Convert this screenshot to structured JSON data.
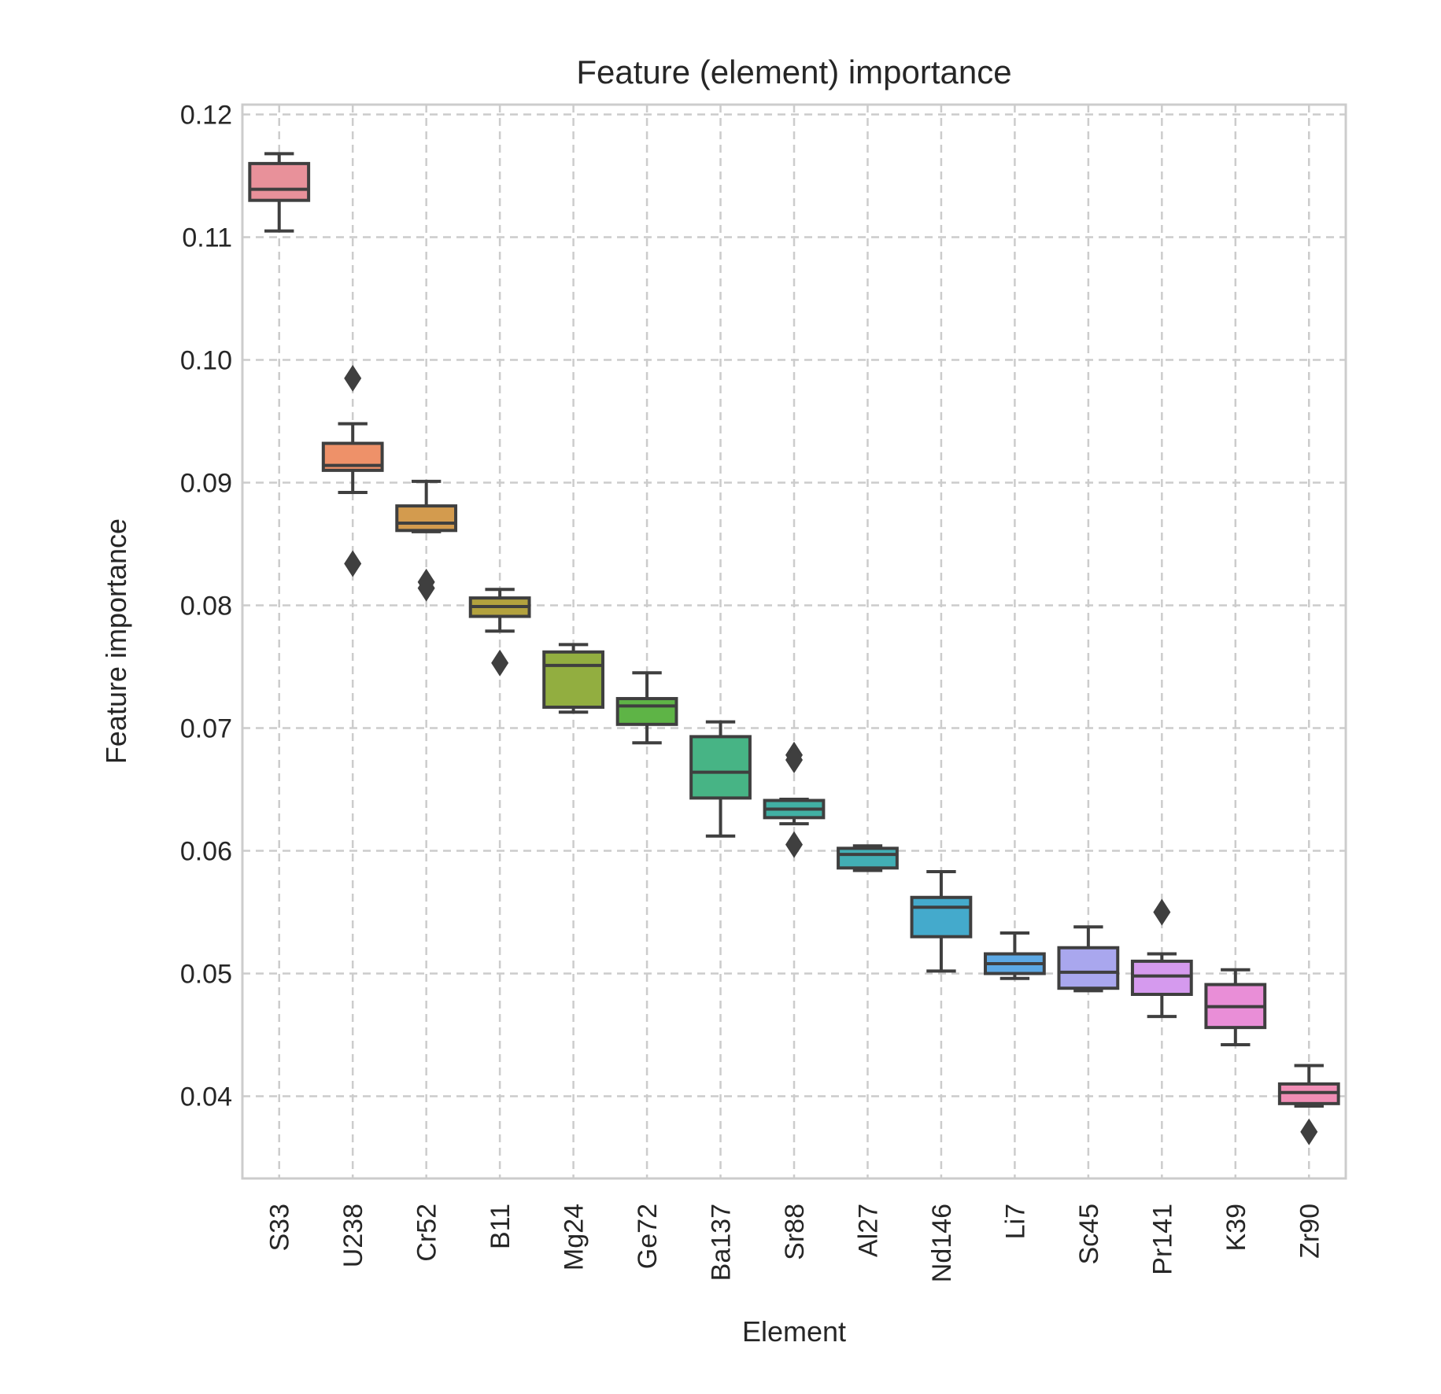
{
  "chart_data": {
    "type": "box",
    "title": "Feature (element) importance",
    "xlabel": "Element",
    "ylabel": "Feature importance",
    "ylim": [
      0.0333,
      0.1208
    ],
    "yticks": [
      "0.04",
      "0.05",
      "0.06",
      "0.07",
      "0.08",
      "0.09",
      "0.10",
      "0.11",
      "0.12"
    ],
    "grid": true,
    "grid_style": "dashed",
    "categories": [
      "S33",
      "U238",
      "Cr52",
      "B11",
      "Mg24",
      "Ge72",
      "Ba137",
      "Sr88",
      "Al27",
      "Nd146",
      "Li7",
      "Sc45",
      "Pr141",
      "K39",
      "Zr90"
    ],
    "boxes": [
      {
        "label": "S33",
        "whisker_low": 0.1105,
        "q1": 0.113,
        "median": 0.1139,
        "q3": 0.116,
        "whisker_high": 0.1168,
        "outliers": [],
        "color": "#E8919A"
      },
      {
        "label": "U238",
        "whisker_low": 0.0892,
        "q1": 0.091,
        "median": 0.0914,
        "q3": 0.0932,
        "whisker_high": 0.0948,
        "outliers": [
          0.0985,
          0.0834
        ],
        "color": "#EE9169"
      },
      {
        "label": "Cr52",
        "whisker_low": 0.086,
        "q1": 0.0861,
        "median": 0.0867,
        "q3": 0.0881,
        "whisker_high": 0.0901,
        "outliers": [
          0.0819,
          0.0814
        ],
        "color": "#D39B4E"
      },
      {
        "label": "B11",
        "whisker_low": 0.0779,
        "q1": 0.0791,
        "median": 0.0799,
        "q3": 0.0806,
        "whisker_high": 0.0813,
        "outliers": [
          0.0753
        ],
        "color": "#B3A23E"
      },
      {
        "label": "Mg24",
        "whisker_low": 0.0713,
        "q1": 0.0717,
        "median": 0.0751,
        "q3": 0.0762,
        "whisker_high": 0.0768,
        "outliers": [],
        "color": "#92AE40"
      },
      {
        "label": "Ge72",
        "whisker_low": 0.0688,
        "q1": 0.0703,
        "median": 0.0718,
        "q3": 0.0724,
        "whisker_high": 0.0745,
        "outliers": [],
        "color": "#5EB446"
      },
      {
        "label": "Ba137",
        "whisker_low": 0.0612,
        "q1": 0.0643,
        "median": 0.0664,
        "q3": 0.0693,
        "whisker_high": 0.0705,
        "outliers": [],
        "color": "#47B485"
      },
      {
        "label": "Sr88",
        "whisker_low": 0.0622,
        "q1": 0.0627,
        "median": 0.0634,
        "q3": 0.0641,
        "whisker_high": 0.0642,
        "outliers": [
          0.0678,
          0.0674,
          0.0605
        ],
        "color": "#41B0A4"
      },
      {
        "label": "Al27",
        "whisker_low": 0.0584,
        "q1": 0.0586,
        "median": 0.0597,
        "q3": 0.0602,
        "whisker_high": 0.0604,
        "outliers": [],
        "color": "#42AEB4"
      },
      {
        "label": "Nd146",
        "whisker_low": 0.0502,
        "q1": 0.053,
        "median": 0.0554,
        "q3": 0.0562,
        "whisker_high": 0.0583,
        "outliers": [],
        "color": "#44AACC"
      },
      {
        "label": "Li7",
        "whisker_low": 0.0496,
        "q1": 0.05,
        "median": 0.0508,
        "q3": 0.0516,
        "whisker_high": 0.0533,
        "outliers": [],
        "color": "#5CA8E4"
      },
      {
        "label": "Sc45",
        "whisker_low": 0.0486,
        "q1": 0.0488,
        "median": 0.0501,
        "q3": 0.0521,
        "whisker_high": 0.0538,
        "outliers": [],
        "color": "#A9A7EE"
      },
      {
        "label": "Pr141",
        "whisker_low": 0.0465,
        "q1": 0.0483,
        "median": 0.0498,
        "q3": 0.051,
        "whisker_high": 0.0516,
        "outliers": [
          0.055
        ],
        "color": "#D59AEE"
      },
      {
        "label": "K39",
        "whisker_low": 0.0442,
        "q1": 0.0456,
        "median": 0.0473,
        "q3": 0.0491,
        "whisker_high": 0.0503,
        "outliers": [],
        "color": "#E98ED7"
      },
      {
        "label": "Zr90",
        "whisker_low": 0.0392,
        "q1": 0.0394,
        "median": 0.0403,
        "q3": 0.041,
        "whisker_high": 0.0425,
        "outliers": [
          0.0371
        ],
        "color": "#F08DB5"
      }
    ]
  }
}
